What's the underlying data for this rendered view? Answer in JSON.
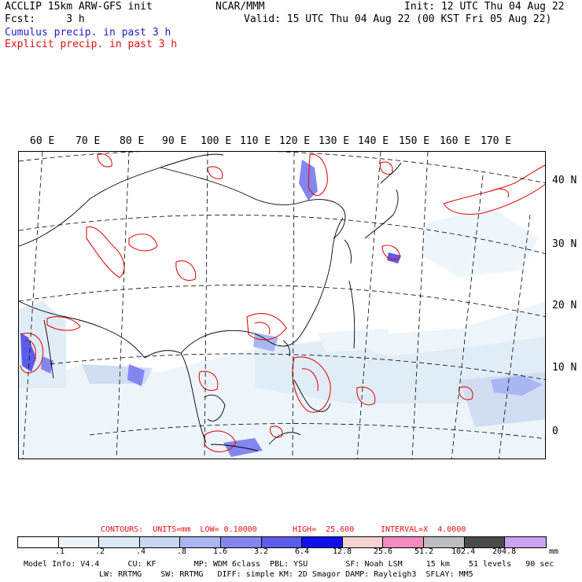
{
  "header": {
    "model_title": "ACCLIP 15km ARW-GFS init",
    "forecast": "Fcst:     3 h",
    "center": "NCAR/MMM",
    "init": "Init: 12 UTC Thu 04 Aug 22",
    "valid": "Valid: 15 UTC Thu 04 Aug 22 (00 KST Fri 05 Aug 22)",
    "cumulus_label": "Cumulus precip. in past 3 h",
    "explicit_label": "Explicit precip. in past 3 h"
  },
  "map": {
    "lon_labels": [
      "60 E",
      "70 E",
      "80 E",
      "90 E",
      "100 E",
      "110 E",
      "120 E",
      "130 E",
      "140 E",
      "150 E",
      "160 E",
      "170 E"
    ],
    "lat_labels": [
      "40 N",
      "30 N",
      "20 N",
      "10 N",
      "0"
    ]
  },
  "legend": {
    "contours": {
      "title": "CONTOURS:  UNITS=mm  LOW= 0.10000",
      "high": "HIGH=  25.600",
      "interval": "INTERVAL=X  4.0000"
    },
    "tick_labels": [
      ".1",
      ".2",
      ".4",
      ".8",
      "1.6",
      "3.2",
      "6.4",
      "12.8",
      "25.6",
      "51.2",
      "102.4",
      "204.8"
    ],
    "unit": "mm",
    "colors": [
      "#ffffff",
      "#ebf4fa",
      "#dbe9f5",
      "#c8d8f2",
      "#a9b6f2",
      "#8486f0",
      "#5c5cec",
      "#1010ec",
      "#f7d2d2",
      "#f68cbe",
      "#bebebe",
      "#4b4b4b",
      "#cca0f2"
    ]
  },
  "model_info": {
    "line1": "Model Info: V4.4      CU: KF        MP: WDM 6class  PBL: YSU        SF: Noah LSM     15 km    51 levels   90 sec",
    "line2": "LW: RRTMG    SW: RRTMG   DIFF: simple KM: 2D Smagor DAMP: Rayleigh3  SFLAY: MM5"
  }
}
